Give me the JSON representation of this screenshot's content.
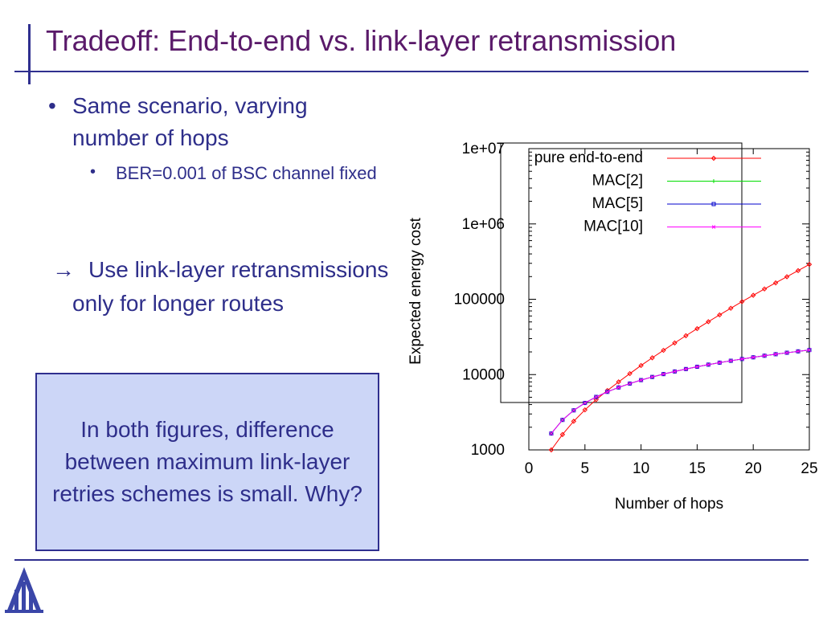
{
  "slide": {
    "title": "Tradeoff: End-to-end vs. link-layer retransmission",
    "bullet_main": "Same scenario, varying number of hops",
    "bullet_sub": "BER=0.001 of BSC channel fixed",
    "arrow_symbol": "→",
    "arrow_text": "Use link-layer retransmissions only for longer routes",
    "callout": "In both figures, difference between maximum link-layer retries schemes is small. Why?",
    "colors": {
      "title": "#5a1a6a",
      "text": "#2e2e8a",
      "rule": "#2f2f8f",
      "callout_bg": "#ccd6f7"
    }
  },
  "chart_data": {
    "type": "line",
    "xlabel": "Number of hops",
    "ylabel": "Expected energy cost",
    "x_ticks": [
      "0",
      "5",
      "10",
      "15",
      "20",
      "25"
    ],
    "y_ticks": [
      "1000",
      "10000",
      "100000",
      "1e+06",
      "1e+07"
    ],
    "xlim": [
      0,
      25
    ],
    "ylim": [
      1000,
      10000000
    ],
    "y_scale": "log",
    "legend_placement": "top-right",
    "x": [
      2,
      3,
      4,
      5,
      6,
      7,
      8,
      9,
      10,
      11,
      12,
      13,
      14,
      15,
      16,
      17,
      18,
      19,
      20,
      21,
      22,
      23,
      24,
      25
    ],
    "series": [
      {
        "name": "pure end-to-end",
        "color": "#ff0000",
        "marker": "diamond",
        "values": [
          1000,
          1600,
          2400,
          3400,
          4650,
          6150,
          8000,
          10300,
          13200,
          16700,
          21000,
          26300,
          32800,
          40700,
          50300,
          62000,
          76000,
          93000,
          113000,
          137000,
          165000,
          199000,
          240000,
          290000
        ]
      },
      {
        "name": "MAC[2]",
        "color": "#00dd00",
        "marker": "plus",
        "values": [
          1650,
          2500,
          3350,
          4200,
          5050,
          5900,
          6750,
          7600,
          8450,
          9300,
          10150,
          11000,
          11850,
          12700,
          13550,
          14400,
          15250,
          16100,
          16950,
          17800,
          18650,
          19500,
          20350,
          21200
        ]
      },
      {
        "name": "MAC[5]",
        "color": "#0000cc",
        "marker": "square",
        "values": [
          1650,
          2500,
          3350,
          4200,
          5050,
          5900,
          6750,
          7600,
          8450,
          9300,
          10150,
          11000,
          11850,
          12700,
          13550,
          14400,
          15250,
          16100,
          16950,
          17800,
          18650,
          19500,
          20350,
          21200
        ]
      },
      {
        "name": "MAC[10]",
        "color": "#ff00ff",
        "marker": "cross",
        "values": [
          1650,
          2500,
          3350,
          4200,
          5050,
          5900,
          6750,
          7600,
          8450,
          9300,
          10150,
          11000,
          11850,
          12700,
          13550,
          14400,
          15250,
          16100,
          16950,
          17800,
          18650,
          19500,
          20350,
          21200
        ]
      }
    ]
  }
}
